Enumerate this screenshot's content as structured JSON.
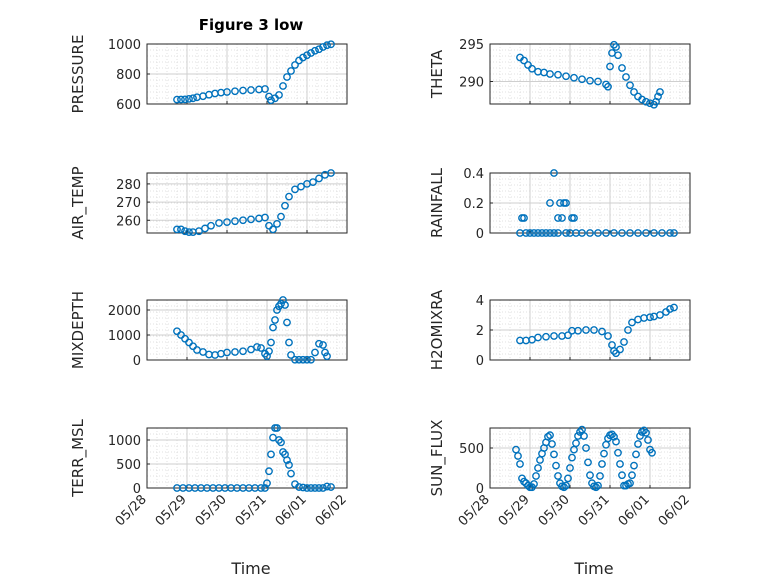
{
  "figure": {
    "title": "Figure 3 low",
    "xlabel": "Time",
    "marker_color": "#0072BD",
    "x_ticks": [
      "05/28",
      "05/29",
      "05/30",
      "05/31",
      "06/01",
      "06/02"
    ]
  },
  "chart_data": [
    {
      "type": "scatter",
      "ylabel": "PRESSURE",
      "ylim": [
        600,
        1000
      ],
      "yticks": [
        600,
        800,
        1000
      ],
      "ytick_labels": [
        "600",
        "800",
        "1000"
      ],
      "xlim": [
        0,
        5
      ],
      "grid": true,
      "points": [
        [
          0.75,
          629
        ],
        [
          0.85,
          630
        ],
        [
          0.95,
          631
        ],
        [
          1.05,
          634
        ],
        [
          1.15,
          638
        ],
        [
          1.25,
          645
        ],
        [
          1.4,
          652
        ],
        [
          1.55,
          662
        ],
        [
          1.7,
          670
        ],
        [
          1.85,
          676
        ],
        [
          2.0,
          680
        ],
        [
          2.2,
          685
        ],
        [
          2.4,
          690
        ],
        [
          2.6,
          693
        ],
        [
          2.8,
          697
        ],
        [
          2.95,
          700
        ],
        [
          3.05,
          650
        ],
        [
          3.1,
          625
        ],
        [
          3.2,
          638
        ],
        [
          3.3,
          660
        ],
        [
          3.4,
          720
        ],
        [
          3.5,
          780
        ],
        [
          3.6,
          820
        ],
        [
          3.7,
          860
        ],
        [
          3.8,
          890
        ],
        [
          3.9,
          910
        ],
        [
          4.0,
          925
        ],
        [
          4.1,
          940
        ],
        [
          4.2,
          955
        ],
        [
          4.3,
          965
        ],
        [
          4.4,
          980
        ],
        [
          4.5,
          992
        ],
        [
          4.6,
          998
        ]
      ]
    },
    {
      "type": "scatter",
      "ylabel": "THETA",
      "ylim": [
        287,
        295
      ],
      "yticks": [
        290,
        295
      ],
      "ytick_labels": [
        "290",
        "295"
      ],
      "xlim": [
        0,
        5
      ],
      "grid": true,
      "points": [
        [
          0.75,
          293.2
        ],
        [
          0.85,
          292.8
        ],
        [
          0.95,
          292.2
        ],
        [
          1.05,
          291.7
        ],
        [
          1.2,
          291.3
        ],
        [
          1.35,
          291.2
        ],
        [
          1.5,
          291.0
        ],
        [
          1.7,
          290.9
        ],
        [
          1.9,
          290.7
        ],
        [
          2.1,
          290.5
        ],
        [
          2.3,
          290.3
        ],
        [
          2.5,
          290.1
        ],
        [
          2.7,
          290.0
        ],
        [
          2.9,
          289.6
        ],
        [
          2.95,
          289.3
        ],
        [
          3.0,
          292.0
        ],
        [
          3.05,
          293.8
        ],
        [
          3.1,
          294.9
        ],
        [
          3.15,
          294.6
        ],
        [
          3.2,
          293.5
        ],
        [
          3.3,
          291.8
        ],
        [
          3.4,
          290.6
        ],
        [
          3.5,
          289.5
        ],
        [
          3.6,
          288.6
        ],
        [
          3.7,
          288.0
        ],
        [
          3.8,
          287.6
        ],
        [
          3.9,
          287.3
        ],
        [
          4.0,
          287.1
        ],
        [
          4.1,
          286.9
        ],
        [
          4.15,
          287.3
        ],
        [
          4.2,
          288.0
        ],
        [
          4.25,
          288.6
        ]
      ]
    },
    {
      "type": "scatter",
      "ylabel": "AIR_TEMP",
      "ylim": [
        253,
        286
      ],
      "yticks": [
        260,
        270,
        280
      ],
      "ytick_labels": [
        "260",
        "270",
        "280"
      ],
      "xlim": [
        0,
        5
      ],
      "grid": true,
      "points": [
        [
          0.75,
          255
        ],
        [
          0.85,
          255
        ],
        [
          0.95,
          254
        ],
        [
          1.05,
          253.5
        ],
        [
          1.15,
          253.5
        ],
        [
          1.3,
          254
        ],
        [
          1.45,
          255.5
        ],
        [
          1.6,
          257
        ],
        [
          1.8,
          258.5
        ],
        [
          2.0,
          259
        ],
        [
          2.2,
          259.5
        ],
        [
          2.4,
          260
        ],
        [
          2.6,
          260.5
        ],
        [
          2.8,
          261
        ],
        [
          2.95,
          261.5
        ],
        [
          3.05,
          257
        ],
        [
          3.15,
          255
        ],
        [
          3.25,
          258
        ],
        [
          3.35,
          262
        ],
        [
          3.45,
          268
        ],
        [
          3.55,
          273
        ],
        [
          3.7,
          277
        ],
        [
          3.85,
          278.5
        ],
        [
          4.0,
          280
        ],
        [
          4.15,
          281
        ],
        [
          4.3,
          283
        ],
        [
          4.45,
          285
        ],
        [
          4.6,
          286
        ]
      ]
    },
    {
      "type": "scatter",
      "ylabel": "RAINFALL",
      "ylim": [
        0,
        0.4
      ],
      "yticks": [
        0,
        0.2,
        0.4
      ],
      "ytick_labels": [
        "0",
        "0.2",
        "0.4"
      ],
      "xlim": [
        0,
        5
      ],
      "grid": true,
      "points": [
        [
          0.75,
          0
        ],
        [
          0.8,
          0.1
        ],
        [
          0.85,
          0.1
        ],
        [
          0.9,
          0
        ],
        [
          1.0,
          0
        ],
        [
          1.1,
          0
        ],
        [
          1.2,
          0
        ],
        [
          1.3,
          0
        ],
        [
          1.4,
          0
        ],
        [
          1.5,
          0
        ],
        [
          1.5,
          0.2
        ],
        [
          1.6,
          0
        ],
        [
          1.6,
          0.4
        ],
        [
          1.7,
          0
        ],
        [
          1.7,
          0.1
        ],
        [
          1.75,
          0.2
        ],
        [
          1.8,
          0.1
        ],
        [
          1.85,
          0.2
        ],
        [
          1.9,
          0.2
        ],
        [
          1.9,
          0
        ],
        [
          2.0,
          0
        ],
        [
          2.05,
          0.1
        ],
        [
          2.1,
          0.1
        ],
        [
          2.15,
          0
        ],
        [
          2.3,
          0
        ],
        [
          2.5,
          0
        ],
        [
          2.7,
          0
        ],
        [
          2.9,
          0
        ],
        [
          3.1,
          0
        ],
        [
          3.3,
          0
        ],
        [
          3.5,
          0
        ],
        [
          3.7,
          0
        ],
        [
          3.9,
          0
        ],
        [
          4.1,
          0
        ],
        [
          4.3,
          0
        ],
        [
          4.5,
          0
        ],
        [
          4.6,
          0
        ]
      ]
    },
    {
      "type": "scatter",
      "ylabel": "MIXDEPTH",
      "ylim": [
        0,
        2400
      ],
      "yticks": [
        0,
        1000,
        2000
      ],
      "ytick_labels": [
        "0",
        "1000",
        "2000"
      ],
      "xlim": [
        0,
        5
      ],
      "grid": true,
      "points": [
        [
          0.75,
          1150
        ],
        [
          0.85,
          1000
        ],
        [
          0.95,
          850
        ],
        [
          1.05,
          700
        ],
        [
          1.15,
          550
        ],
        [
          1.25,
          400
        ],
        [
          1.4,
          320
        ],
        [
          1.55,
          220
        ],
        [
          1.7,
          200
        ],
        [
          1.85,
          250
        ],
        [
          2.0,
          300
        ],
        [
          2.2,
          320
        ],
        [
          2.4,
          350
        ],
        [
          2.6,
          420
        ],
        [
          2.75,
          520
        ],
        [
          2.85,
          480
        ],
        [
          2.95,
          250
        ],
        [
          3.0,
          150
        ],
        [
          3.05,
          350
        ],
        [
          3.1,
          700
        ],
        [
          3.15,
          1300
        ],
        [
          3.2,
          1600
        ],
        [
          3.25,
          2000
        ],
        [
          3.3,
          2150
        ],
        [
          3.35,
          2250
        ],
        [
          3.4,
          2400
        ],
        [
          3.45,
          2200
        ],
        [
          3.5,
          1500
        ],
        [
          3.55,
          700
        ],
        [
          3.6,
          200
        ],
        [
          3.7,
          10
        ],
        [
          3.8,
          10
        ],
        [
          3.9,
          10
        ],
        [
          4.0,
          10
        ],
        [
          4.1,
          10
        ],
        [
          4.2,
          300
        ],
        [
          4.3,
          650
        ],
        [
          4.4,
          600
        ],
        [
          4.45,
          300
        ],
        [
          4.5,
          150
        ]
      ]
    },
    {
      "type": "scatter",
      "ylabel": "H2OMIXRA",
      "ylim": [
        0,
        4
      ],
      "yticks": [
        0,
        2,
        4
      ],
      "ytick_labels": [
        "0",
        "2",
        "4"
      ],
      "xlim": [
        0,
        5
      ],
      "grid": true,
      "points": [
        [
          0.75,
          1.3
        ],
        [
          0.9,
          1.3
        ],
        [
          1.05,
          1.35
        ],
        [
          1.2,
          1.5
        ],
        [
          1.4,
          1.55
        ],
        [
          1.6,
          1.6
        ],
        [
          1.8,
          1.6
        ],
        [
          1.95,
          1.65
        ],
        [
          2.05,
          1.95
        ],
        [
          2.2,
          1.95
        ],
        [
          2.4,
          2.0
        ],
        [
          2.6,
          2.0
        ],
        [
          2.8,
          1.9
        ],
        [
          2.95,
          1.6
        ],
        [
          3.05,
          1.0
        ],
        [
          3.1,
          0.6
        ],
        [
          3.15,
          0.45
        ],
        [
          3.25,
          0.7
        ],
        [
          3.35,
          1.2
        ],
        [
          3.45,
          2.0
        ],
        [
          3.55,
          2.5
        ],
        [
          3.7,
          2.7
        ],
        [
          3.85,
          2.8
        ],
        [
          4.0,
          2.85
        ],
        [
          4.1,
          2.9
        ],
        [
          4.25,
          3.0
        ],
        [
          4.4,
          3.2
        ],
        [
          4.5,
          3.4
        ],
        [
          4.6,
          3.5
        ]
      ]
    },
    {
      "type": "scatter",
      "ylabel": "TERR_MSL",
      "ylim": [
        0,
        1250
      ],
      "yticks": [
        0,
        500,
        1000
      ],
      "ytick_labels": [
        "0",
        "500",
        "1000"
      ],
      "xlim": [
        0,
        5
      ],
      "grid": true,
      "points": [
        [
          0.75,
          0
        ],
        [
          0.9,
          0
        ],
        [
          1.05,
          0
        ],
        [
          1.2,
          0
        ],
        [
          1.35,
          0
        ],
        [
          1.5,
          0
        ],
        [
          1.65,
          0
        ],
        [
          1.8,
          0
        ],
        [
          1.95,
          0
        ],
        [
          2.1,
          0
        ],
        [
          2.25,
          0
        ],
        [
          2.4,
          0
        ],
        [
          2.55,
          0
        ],
        [
          2.7,
          0
        ],
        [
          2.85,
          0
        ],
        [
          2.95,
          0
        ],
        [
          3.0,
          100
        ],
        [
          3.05,
          350
        ],
        [
          3.1,
          700
        ],
        [
          3.15,
          1050
        ],
        [
          3.2,
          1250
        ],
        [
          3.25,
          1250
        ],
        [
          3.3,
          1000
        ],
        [
          3.35,
          950
        ],
        [
          3.4,
          750
        ],
        [
          3.45,
          700
        ],
        [
          3.5,
          580
        ],
        [
          3.55,
          480
        ],
        [
          3.6,
          300
        ],
        [
          3.7,
          80
        ],
        [
          3.8,
          20
        ],
        [
          3.9,
          10
        ],
        [
          4.0,
          0
        ],
        [
          4.1,
          0
        ],
        [
          4.2,
          0
        ],
        [
          4.3,
          0
        ],
        [
          4.4,
          0
        ],
        [
          4.5,
          30
        ],
        [
          4.6,
          20
        ]
      ]
    },
    {
      "type": "scatter",
      "ylabel": "SUN_FLUX",
      "ylim": [
        0,
        750
      ],
      "yticks": [
        0,
        500
      ],
      "ytick_labels": [
        "0",
        "500"
      ],
      "xlim": [
        0,
        5
      ],
      "grid": true,
      "points": [
        [
          0.65,
          480
        ],
        [
          0.7,
          400
        ],
        [
          0.75,
          300
        ],
        [
          0.8,
          120
        ],
        [
          0.85,
          80
        ],
        [
          0.9,
          60
        ],
        [
          0.95,
          30
        ],
        [
          1.0,
          10
        ],
        [
          1.05,
          10
        ],
        [
          1.1,
          50
        ],
        [
          1.15,
          150
        ],
        [
          1.2,
          250
        ],
        [
          1.25,
          350
        ],
        [
          1.3,
          430
        ],
        [
          1.35,
          500
        ],
        [
          1.4,
          570
        ],
        [
          1.45,
          640
        ],
        [
          1.5,
          660
        ],
        [
          1.55,
          550
        ],
        [
          1.6,
          420
        ],
        [
          1.65,
          280
        ],
        [
          1.7,
          150
        ],
        [
          1.75,
          60
        ],
        [
          1.8,
          20
        ],
        [
          1.85,
          10
        ],
        [
          1.9,
          30
        ],
        [
          1.95,
          120
        ],
        [
          2.0,
          250
        ],
        [
          2.05,
          380
        ],
        [
          2.1,
          480
        ],
        [
          2.15,
          560
        ],
        [
          2.2,
          650
        ],
        [
          2.25,
          700
        ],
        [
          2.3,
          730
        ],
        [
          2.35,
          650
        ],
        [
          2.4,
          500
        ],
        [
          2.45,
          320
        ],
        [
          2.5,
          160
        ],
        [
          2.55,
          60
        ],
        [
          2.6,
          20
        ],
        [
          2.65,
          10
        ],
        [
          2.7,
          30
        ],
        [
          2.75,
          150
        ],
        [
          2.8,
          300
        ],
        [
          2.85,
          430
        ],
        [
          2.9,
          540
        ],
        [
          2.95,
          620
        ],
        [
          3.0,
          660
        ],
        [
          3.05,
          670
        ],
        [
          3.1,
          640
        ],
        [
          3.15,
          580
        ],
        [
          3.2,
          440
        ],
        [
          3.25,
          300
        ],
        [
          3.3,
          160
        ],
        [
          3.35,
          30
        ],
        [
          3.4,
          30
        ],
        [
          3.45,
          50
        ],
        [
          3.5,
          60
        ],
        [
          3.55,
          160
        ],
        [
          3.6,
          280
        ],
        [
          3.65,
          420
        ],
        [
          3.7,
          550
        ],
        [
          3.75,
          650
        ],
        [
          3.8,
          700
        ],
        [
          3.85,
          720
        ],
        [
          3.9,
          690
        ],
        [
          3.95,
          600
        ],
        [
          4.0,
          480
        ],
        [
          4.05,
          440
        ]
      ]
    }
  ]
}
